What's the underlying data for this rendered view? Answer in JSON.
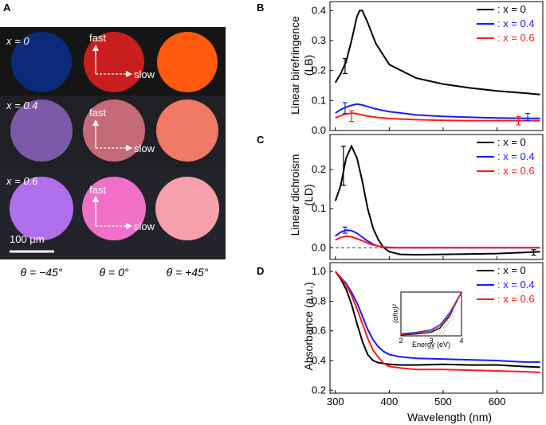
{
  "panels": {
    "A": "A",
    "B": "B",
    "C": "C",
    "D": "D"
  },
  "panel_a": {
    "rows": [
      {
        "label": "x = 0",
        "colors": [
          "#0b2a7a",
          "#c81e1e",
          "#ff5a10"
        ]
      },
      {
        "label": "x = 0.4",
        "colors": [
          "#7a5aa8",
          "#c46a78",
          "#f07a66"
        ]
      },
      {
        "label": "x = 0.6",
        "colors": [
          "#b070ee",
          "#f070c8",
          "#f5a0aa"
        ]
      }
    ],
    "axes_fast": "fast",
    "axes_slow": "slow",
    "scalebar": "100 μm",
    "angles": [
      "θ = −45°",
      "θ = 0°",
      "θ = +45°"
    ]
  },
  "colors": {
    "x0": "#000000",
    "x04": "#1a1aff",
    "x06": "#ff1a1a"
  },
  "legend": [
    "x = 0",
    "x = 0.4",
    "x = 0.6"
  ],
  "chart_data": [
    {
      "type": "line",
      "panel": "B",
      "ylabel": "Linear birefringence (LB)",
      "xlim": [
        290,
        685
      ],
      "ylim": [
        0,
        0.43
      ],
      "yticks": [
        "0.0",
        "0.1",
        "0.2",
        "0.3",
        "0.4"
      ],
      "x": [
        300,
        310,
        320,
        330,
        340,
        345,
        350,
        360,
        375,
        400,
        450,
        500,
        550,
        600,
        650,
        680
      ],
      "series": [
        {
          "name": "x = 0",
          "values": [
            0.16,
            0.19,
            0.23,
            0.3,
            0.38,
            0.4,
            0.4,
            0.36,
            0.29,
            0.22,
            0.175,
            0.155,
            0.142,
            0.132,
            0.125,
            0.12
          ]
        },
        {
          "name": "x = 0.4",
          "values": [
            0.058,
            0.07,
            0.078,
            0.084,
            0.088,
            0.087,
            0.085,
            0.08,
            0.072,
            0.063,
            0.052,
            0.047,
            0.044,
            0.042,
            0.041,
            0.04
          ]
        },
        {
          "name": "x = 0.6",
          "values": [
            0.042,
            0.05,
            0.055,
            0.058,
            0.056,
            0.054,
            0.052,
            0.048,
            0.044,
            0.04,
            0.036,
            0.034,
            0.033,
            0.033,
            0.033,
            0.033
          ]
        }
      ]
    },
    {
      "type": "line",
      "panel": "C",
      "ylabel": "Linear dichroism (LD)",
      "xlim": [
        290,
        685
      ],
      "ylim": [
        -0.03,
        0.29
      ],
      "yticks": [
        "0.0",
        "0.1",
        "0.2"
      ],
      "x": [
        300,
        310,
        320,
        330,
        340,
        350,
        360,
        370,
        380,
        390,
        400,
        420,
        450,
        500,
        550,
        600,
        650,
        680
      ],
      "series": [
        {
          "name": "x = 0",
          "values": [
            0.12,
            0.16,
            0.23,
            0.26,
            0.23,
            0.17,
            0.1,
            0.05,
            0.02,
            0.0,
            -0.01,
            -0.017,
            -0.018,
            -0.017,
            -0.016,
            -0.015,
            -0.012,
            -0.01
          ]
        },
        {
          "name": "x = 0.4",
          "values": [
            0.03,
            0.04,
            0.045,
            0.044,
            0.037,
            0.027,
            0.017,
            0.009,
            0.004,
            0.001,
            0.0,
            0.0,
            0.0,
            0.0,
            0.0,
            0.0,
            0.0,
            0.0
          ]
        },
        {
          "name": "x = 0.6",
          "values": [
            0.02,
            0.026,
            0.03,
            0.028,
            0.023,
            0.018,
            0.012,
            0.007,
            0.004,
            0.002,
            0.001,
            0.0,
            0.0,
            0.0,
            0.0,
            0.0,
            0.0,
            0.0
          ]
        }
      ]
    },
    {
      "type": "line",
      "panel": "D",
      "ylabel": "Absorbance (a.u.)",
      "xlabel": "Wavelength (nm)",
      "xlim": [
        290,
        685
      ],
      "ylim": [
        0.18,
        1.06
      ],
      "xticks": [
        "300",
        "400",
        "500",
        "600"
      ],
      "yticks": [
        "0.2",
        "0.4",
        "0.6",
        "0.8",
        "1.0"
      ],
      "x": [
        300,
        310,
        320,
        330,
        340,
        350,
        360,
        370,
        380,
        390,
        400,
        420,
        450,
        500,
        550,
        600,
        650,
        680
      ],
      "series": [
        {
          "name": "x = 0",
          "values": [
            1.0,
            0.95,
            0.88,
            0.78,
            0.65,
            0.53,
            0.44,
            0.4,
            0.385,
            0.38,
            0.375,
            0.37,
            0.37,
            0.375,
            0.37,
            0.37,
            0.36,
            0.355
          ]
        },
        {
          "name": "x = 0.4",
          "values": [
            1.0,
            0.96,
            0.92,
            0.86,
            0.79,
            0.7,
            0.61,
            0.54,
            0.49,
            0.46,
            0.44,
            0.425,
            0.415,
            0.41,
            0.405,
            0.4,
            0.39,
            0.39
          ]
        },
        {
          "name": "x = 0.6",
          "values": [
            1.0,
            0.96,
            0.91,
            0.84,
            0.75,
            0.65,
            0.55,
            0.47,
            0.42,
            0.38,
            0.36,
            0.35,
            0.34,
            0.34,
            0.335,
            0.33,
            0.325,
            0.32
          ]
        }
      ]
    }
  ],
  "inset": {
    "ylabel": "(αhν)²",
    "xlabel": "Energy (eV)",
    "xticks": [
      "2",
      "3",
      "4"
    ]
  }
}
